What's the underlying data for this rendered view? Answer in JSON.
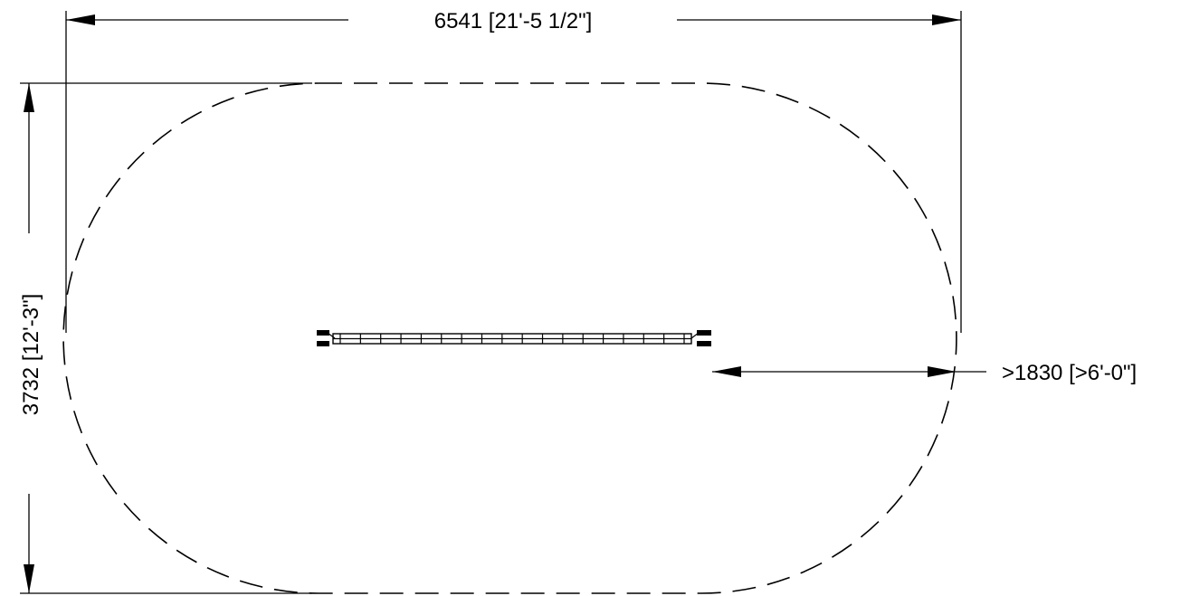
{
  "dimensions": {
    "width_label": "6541 [21'-5 1/2\"]",
    "height_label": "3732 [12'-3\"]",
    "clearance_label": ">1830 [>6'-0\"]"
  },
  "colors": {
    "line": "#000000",
    "background": "#ffffff"
  }
}
